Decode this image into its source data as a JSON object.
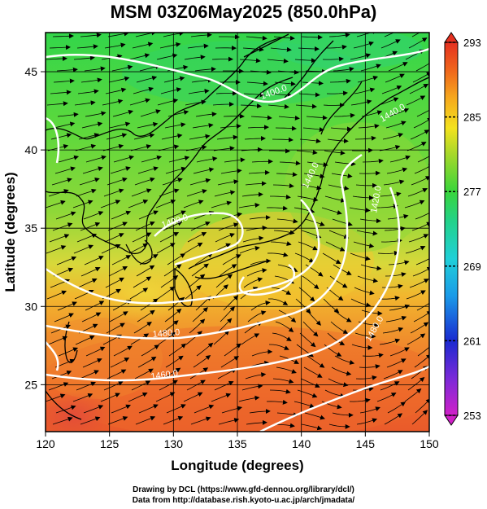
{
  "title": "MSM 03Z06May2025 (850.0hPa)",
  "xlabel": "Longitude (degrees)",
  "ylabel": "Latitude  (degrees)",
  "x_ticks": [
    "120",
    "125",
    "130",
    "135",
    "140",
    "145",
    "150"
  ],
  "y_ticks": [
    "25",
    "30",
    "35",
    "40",
    "45"
  ],
  "colorbar": {
    "labels": [
      "293",
      "285",
      "277",
      "269",
      "261",
      "253"
    ],
    "range": [
      253,
      293
    ],
    "colors": [
      "#d020c8",
      "#7a2ad8",
      "#1a2ad0",
      "#1a9ae8",
      "#20d0d8",
      "#22d28a",
      "#39d53b",
      "#a6d82a",
      "#f3e21e",
      "#f6a91d",
      "#f06a1c",
      "#e53020"
    ]
  },
  "contours": [
    {
      "label": "1400.0"
    },
    {
      "label": "1400.0"
    },
    {
      "label": "1440.0"
    },
    {
      "label": "1420.0"
    },
    {
      "label": "1480.0"
    },
    {
      "label": "1460.0"
    },
    {
      "label": "1480.0"
    },
    {
      "label": "1440.0"
    }
  ],
  "credits": {
    "line1": "Drawing by DCL (https://www.gfd-dennou.org/library/dcl/)",
    "line2": "Data from http://database.rish.kyoto-u.ac.jp/arch/jmadata/"
  }
}
